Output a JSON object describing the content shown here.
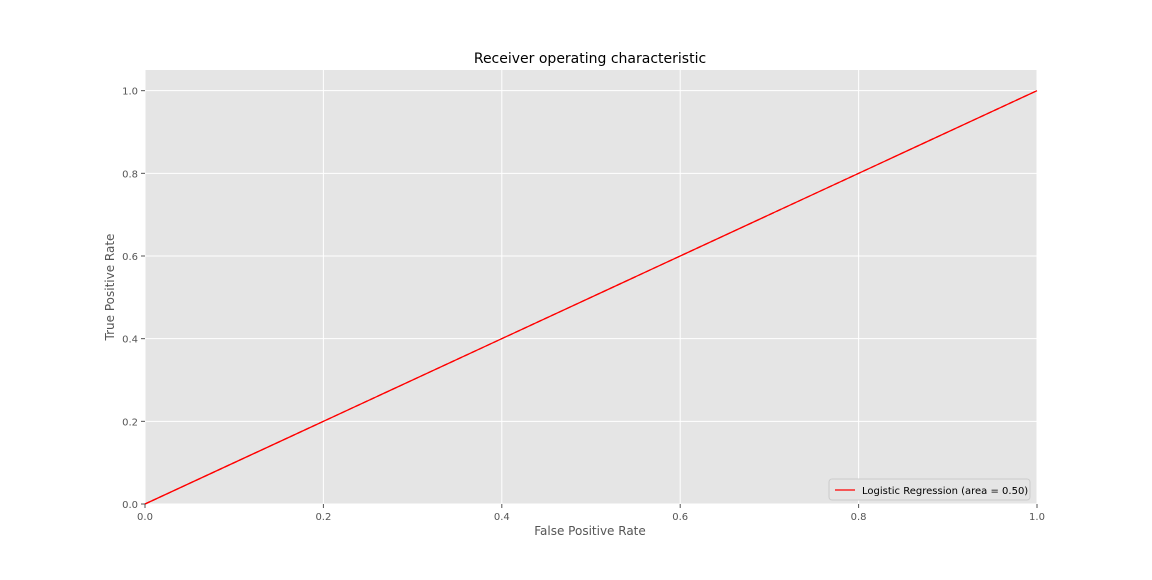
{
  "chart_data": {
    "type": "line",
    "title": "Receiver operating characteristic",
    "xlabel": "False Positive Rate",
    "ylabel": "True Positive Rate",
    "xlim": [
      0.0,
      1.0
    ],
    "ylim": [
      0.0,
      1.05
    ],
    "xticks": [
      "0.0",
      "0.2",
      "0.4",
      "0.6",
      "0.8",
      "1.0"
    ],
    "yticks": [
      "0.0",
      "0.2",
      "0.4",
      "0.6",
      "0.8",
      "1.0"
    ],
    "grid": true,
    "legend_position": "lower-right",
    "series": [
      {
        "name": "Logistic Regression (area = 0.50)",
        "color": "#ff0000",
        "x": [
          0.0,
          1.0
        ],
        "y": [
          0.0,
          1.0
        ]
      }
    ],
    "reference_line": {
      "color": "#ff0000",
      "dash": "dashed",
      "x": [
        0.0,
        1.0
      ],
      "y": [
        0.0,
        1.0
      ]
    }
  },
  "colors": {
    "plot_background": "#e5e5e5",
    "grid": "#ffffff",
    "tick_label": "#555555",
    "title": "#000000"
  }
}
